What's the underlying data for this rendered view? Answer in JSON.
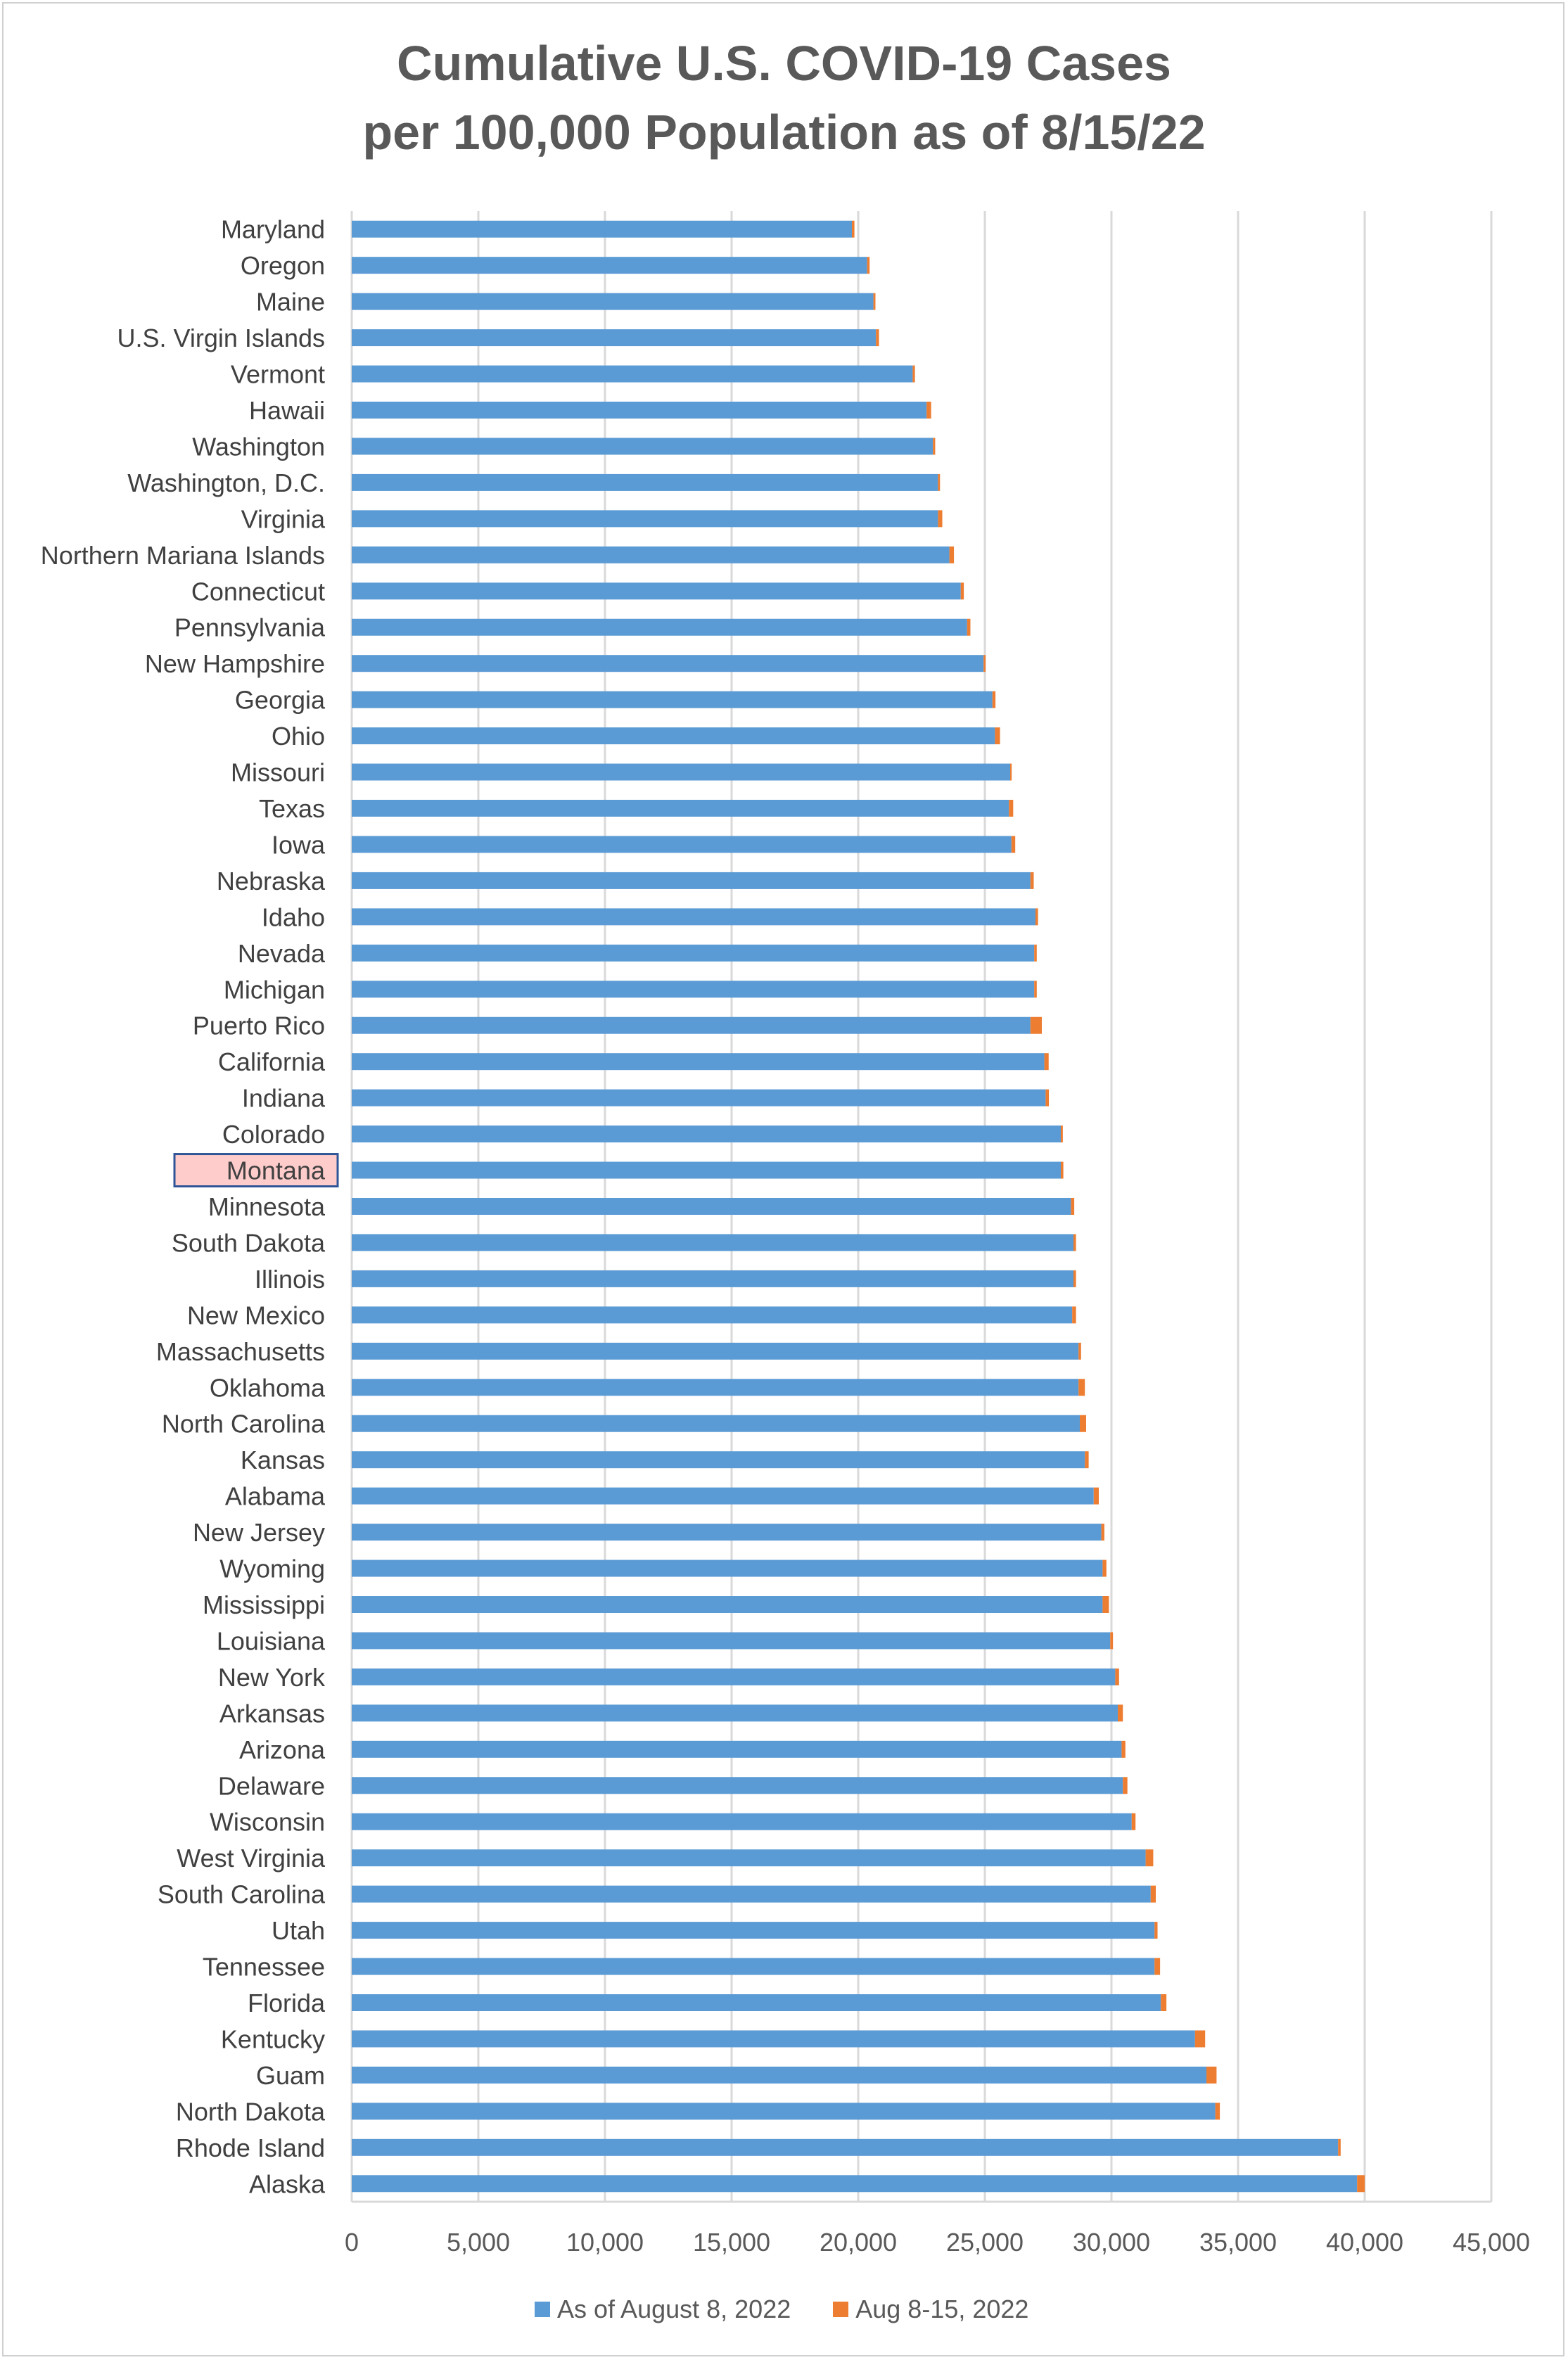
{
  "chart_data": {
    "type": "bar",
    "orientation": "horizontal",
    "stacked": true,
    "title": "Cumulative U.S. COVID-19 Cases",
    "subtitle": "per 100,000 Population as of 8/15/22",
    "xlim": [
      0,
      45000
    ],
    "x_ticks": [
      "0",
      "5,000",
      "10,000",
      "15,000",
      "20,000",
      "25,000",
      "30,000",
      "35,000",
      "40,000",
      "45,000"
    ],
    "grid": "vertical",
    "legend_position": "bottom",
    "highlighted_category": "Montana",
    "categories": [
      "Maryland",
      "Oregon",
      "Maine",
      "U.S. Virgin Islands",
      "Vermont",
      "Hawaii",
      "Washington",
      "Washington, D.C.",
      "Virginia",
      "Northern Mariana Islands",
      "Connecticut",
      "Pennsylvania",
      "New Hampshire",
      "Georgia",
      "Ohio",
      "Missouri",
      "Texas",
      "Iowa",
      "Nebraska",
      "Idaho",
      "Nevada",
      "Michigan",
      "Puerto Rico",
      "California",
      "Indiana",
      "Colorado",
      "Montana",
      "Minnesota",
      "South Dakota",
      "Illinois",
      "New Mexico",
      "Massachusetts",
      "Oklahoma",
      "North Carolina",
      "Kansas",
      "Alabama",
      "New Jersey",
      "Wyoming",
      "Mississippi",
      "Louisiana",
      "New York",
      "Arkansas",
      "Arizona",
      "Delaware",
      "Wisconsin",
      "West Virginia",
      "South Carolina",
      "Utah",
      "Tennessee",
      "Florida",
      "Kentucky",
      "Guam",
      "North Dakota",
      "Rhode Island",
      "Alaska"
    ],
    "series": [
      {
        "name": "As of August 8, 2022",
        "color": "#5b9bd5",
        "values": [
          19750,
          20350,
          20600,
          20700,
          22150,
          22700,
          22950,
          23150,
          23150,
          23600,
          24050,
          24300,
          24950,
          25300,
          25400,
          26000,
          25950,
          26050,
          26800,
          27000,
          26950,
          26950,
          26800,
          27350,
          27400,
          28000,
          28000,
          28400,
          28500,
          28500,
          28450,
          28700,
          28700,
          28750,
          28950,
          29300,
          29600,
          29650,
          29650,
          29950,
          30150,
          30250,
          30400,
          30450,
          30800,
          31350,
          31550,
          31700,
          31700,
          31950,
          33300,
          33750,
          34100,
          38950,
          39700
        ]
      },
      {
        "name": "Aug 8-15, 2022",
        "color": "#ed7d31",
        "values": [
          100,
          100,
          80,
          120,
          90,
          180,
          90,
          80,
          170,
          180,
          120,
          130,
          80,
          120,
          200,
          60,
          170,
          150,
          130,
          100,
          100,
          100,
          450,
          170,
          130,
          80,
          100,
          130,
          100,
          100,
          150,
          100,
          250,
          250,
          150,
          200,
          120,
          150,
          250,
          110,
          150,
          200,
          150,
          180,
          150,
          300,
          200,
          120,
          220,
          220,
          400,
          400,
          180,
          100,
          300
        ]
      }
    ]
  }
}
